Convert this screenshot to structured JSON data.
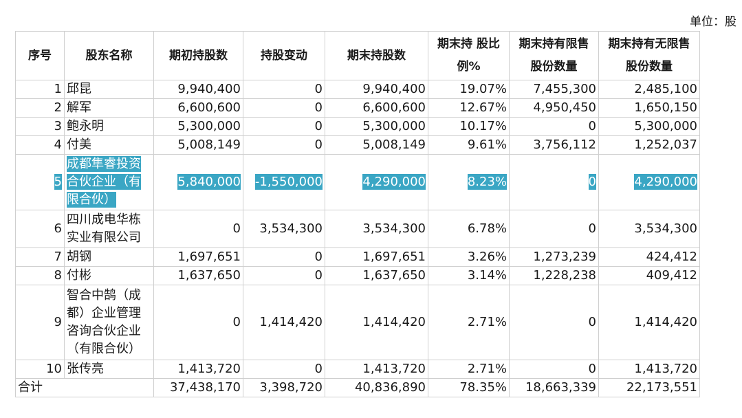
{
  "unit_label": "单位：股",
  "headers": {
    "seq": "序号",
    "name": "股东名称",
    "initial": "期初持股数",
    "change": "持股变动",
    "ending": "期末持股数",
    "ratio_line1": "期末持 股比",
    "ratio_line2": "例%",
    "restricted_line1": "期末持有限售",
    "restricted_line2": "股份数量",
    "unrestricted_line1": "期末持有无限售",
    "unrestricted_line2": "股份数量"
  },
  "rows": [
    {
      "seq": "1",
      "name": "邱昆",
      "initial": "9,940,400",
      "change": "0",
      "ending": "9,940,400",
      "ratio": "19.07%",
      "restricted": "7,455,300",
      "unrestricted": "2,485,100"
    },
    {
      "seq": "2",
      "name": "解军",
      "initial": "6,600,600",
      "change": "0",
      "ending": "6,600,600",
      "ratio": "12.67%",
      "restricted": "4,950,450",
      "unrestricted": "1,650,150"
    },
    {
      "seq": "3",
      "name": "鲍永明",
      "initial": "5,300,000",
      "change": "0",
      "ending": "5,300,000",
      "ratio": "10.17%",
      "restricted": "0",
      "unrestricted": "5,300,000"
    },
    {
      "seq": "4",
      "name": "付美",
      "initial": "5,008,149",
      "change": "0",
      "ending": "5,008,149",
      "ratio": "9.61%",
      "restricted": "3,756,112",
      "unrestricted": "1,252,037"
    },
    {
      "seq": "5",
      "name": "成都隼睿投资合伙企业（有限合伙）",
      "initial": "5,840,000",
      "change": "-1,550,000",
      "ending": "4,290,000",
      "ratio": "8.23%",
      "restricted": "0",
      "unrestricted": "4,290,000"
    },
    {
      "seq": "6",
      "name": "四川成电华栋实业有限公司",
      "initial": "0",
      "change": "3,534,300",
      "ending": "3,534,300",
      "ratio": "6.78%",
      "restricted": "0",
      "unrestricted": "3,534,300"
    },
    {
      "seq": "7",
      "name": "胡钢",
      "initial": "1,697,651",
      "change": "0",
      "ending": "1,697,651",
      "ratio": "3.26%",
      "restricted": "1,273,239",
      "unrestricted": "424,412"
    },
    {
      "seq": "8",
      "name": "付彬",
      "initial": "1,637,650",
      "change": "0",
      "ending": "1,637,650",
      "ratio": "3.14%",
      "restricted": "1,228,238",
      "unrestricted": "409,412"
    },
    {
      "seq": "9",
      "name": "智合中鹄（成都）企业管理咨询合伙企业（有限合伙）",
      "initial": "0",
      "change": "1,414,420",
      "ending": "1,414,420",
      "ratio": "2.71%",
      "restricted": "0",
      "unrestricted": "1,414,420"
    },
    {
      "seq": "10",
      "name": "张传亮",
      "initial": "1,413,720",
      "change": "0",
      "ending": "1,413,720",
      "ratio": "2.71%",
      "restricted": "0",
      "unrestricted": "1,413,720"
    }
  ],
  "total": {
    "label": "合计",
    "initial": "37,438,170",
    "change": "3,398,720",
    "ending": "40,836,890",
    "ratio": "78.35%",
    "restricted": "18,663,339",
    "unrestricted": "22,173,551"
  },
  "highlight_color": "#3aa6c4"
}
